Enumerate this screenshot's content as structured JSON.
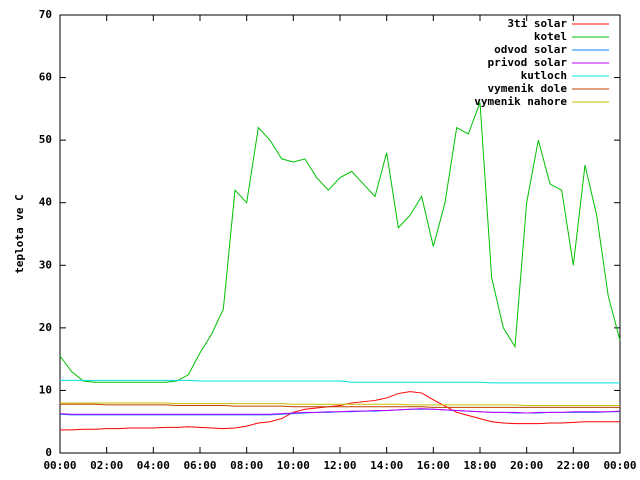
{
  "chart_data": {
    "type": "line",
    "ylabel": "teplota ve C",
    "xlim": [
      0,
      24
    ],
    "ylim": [
      0,
      70
    ],
    "yticks": [
      0,
      10,
      20,
      30,
      40,
      50,
      60,
      70
    ],
    "xticks": [
      {
        "value": 0,
        "label": "00:00"
      },
      {
        "value": 2,
        "label": "02:00"
      },
      {
        "value": 4,
        "label": "04:00"
      },
      {
        "value": 6,
        "label": "06:00"
      },
      {
        "value": 8,
        "label": "08:00"
      },
      {
        "value": 10,
        "label": "10:00"
      },
      {
        "value": 12,
        "label": "12:00"
      },
      {
        "value": 14,
        "label": "14:00"
      },
      {
        "value": 16,
        "label": "16:00"
      },
      {
        "value": 18,
        "label": "18:00"
      },
      {
        "value": 20,
        "label": "20:00"
      },
      {
        "value": 22,
        "label": "22:00"
      },
      {
        "value": 24,
        "label": "00:00"
      }
    ],
    "legend": "top-right",
    "x": [
      0,
      0.5,
      1,
      1.5,
      2,
      2.5,
      3,
      3.5,
      4,
      4.5,
      5,
      5.5,
      6,
      6.5,
      7,
      7.5,
      8,
      8.5,
      9,
      9.5,
      10,
      10.5,
      11,
      11.5,
      12,
      12.5,
      13,
      13.5,
      14,
      14.5,
      15,
      15.5,
      16,
      16.5,
      17,
      17.5,
      18,
      18.5,
      19,
      19.5,
      20,
      20.5,
      21,
      21.5,
      22,
      22.5,
      23,
      23.5,
      24
    ],
    "series": [
      {
        "name": "3ti solar",
        "color": "#ff0000",
        "values": [
          3.7,
          3.7,
          3.8,
          3.8,
          3.9,
          3.9,
          4.0,
          4.0,
          4.0,
          4.1,
          4.1,
          4.2,
          4.1,
          4.0,
          3.9,
          4.0,
          4.3,
          4.8,
          5.0,
          5.5,
          6.5,
          7.0,
          7.2,
          7.4,
          7.6,
          8.0,
          8.2,
          8.4,
          8.8,
          9.5,
          9.8,
          9.6,
          8.5,
          7.5,
          6.5,
          6.0,
          5.5,
          5.0,
          4.8,
          4.7,
          4.7,
          4.7,
          4.8,
          4.8,
          4.9,
          5.0,
          5.0,
          5.0,
          5.0
        ]
      },
      {
        "name": "kotel",
        "color": "#00c000",
        "values": [
          15.5,
          13,
          11.5,
          11.3,
          11.3,
          11.3,
          11.3,
          11.3,
          11.3,
          11.3,
          11.5,
          12.5,
          16,
          19,
          23,
          42,
          40,
          52,
          50,
          47,
          46.5,
          47,
          44,
          42,
          44,
          45,
          43,
          41,
          48,
          36,
          38,
          41,
          33,
          40,
          52,
          51,
          56,
          28,
          20,
          17,
          40,
          50,
          43,
          42,
          30,
          46,
          38,
          25,
          18
        ]
      },
      {
        "name": "odvod solar",
        "color": "#0080ff",
        "values": [
          6.2,
          6.1,
          6.1,
          6.1,
          6.1,
          6.1,
          6.1,
          6.1,
          6.1,
          6.1,
          6.1,
          6.1,
          6.1,
          6.1,
          6.1,
          6.1,
          6.1,
          6.1,
          6.1,
          6.2,
          6.3,
          6.4,
          6.5,
          6.5,
          6.6,
          6.6,
          6.7,
          6.7,
          6.8,
          6.9,
          7.0,
          7.0,
          7.0,
          6.9,
          6.8,
          6.7,
          6.6,
          6.5,
          6.5,
          6.4,
          6.4,
          6.4,
          6.5,
          6.5,
          6.5,
          6.5,
          6.5,
          6.6,
          6.6
        ]
      },
      {
        "name": "privod solar",
        "color": "#c000ff",
        "values": [
          6.3,
          6.2,
          6.2,
          6.2,
          6.2,
          6.2,
          6.2,
          6.2,
          6.2,
          6.2,
          6.2,
          6.2,
          6.2,
          6.2,
          6.2,
          6.2,
          6.2,
          6.2,
          6.2,
          6.3,
          6.4,
          6.5,
          6.5,
          6.6,
          6.6,
          6.7,
          6.7,
          6.8,
          6.8,
          6.9,
          7.0,
          7.1,
          7.0,
          6.9,
          6.8,
          6.7,
          6.6,
          6.5,
          6.5,
          6.5,
          6.4,
          6.5,
          6.5,
          6.5,
          6.6,
          6.6,
          6.6,
          6.6,
          6.7
        ]
      },
      {
        "name": "kutloch",
        "color": "#00e0e0",
        "values": [
          11.6,
          11.6,
          11.6,
          11.6,
          11.6,
          11.6,
          11.6,
          11.6,
          11.6,
          11.6,
          11.6,
          11.6,
          11.5,
          11.5,
          11.5,
          11.5,
          11.5,
          11.5,
          11.5,
          11.5,
          11.5,
          11.5,
          11.5,
          11.5,
          11.5,
          11.3,
          11.3,
          11.3,
          11.3,
          11.3,
          11.3,
          11.3,
          11.3,
          11.3,
          11.3,
          11.3,
          11.3,
          11.2,
          11.2,
          11.2,
          11.2,
          11.2,
          11.2,
          11.2,
          11.2,
          11.2,
          11.2,
          11.2,
          11.2
        ]
      },
      {
        "name": "vymenik dole",
        "color": "#c04000",
        "values": [
          7.8,
          7.8,
          7.8,
          7.8,
          7.7,
          7.7,
          7.7,
          7.7,
          7.7,
          7.7,
          7.6,
          7.6,
          7.6,
          7.6,
          7.6,
          7.5,
          7.5,
          7.5,
          7.5,
          7.5,
          7.4,
          7.4,
          7.4,
          7.4,
          7.4,
          7.4,
          7.4,
          7.4,
          7.4,
          7.4,
          7.4,
          7.4,
          7.3,
          7.3,
          7.3,
          7.3,
          7.3,
          7.3,
          7.3,
          7.3,
          7.3,
          7.3,
          7.3,
          7.3,
          7.3,
          7.3,
          7.3,
          7.3,
          7.3
        ]
      },
      {
        "name": "vymenik nahore",
        "color": "#c8c000",
        "values": [
          8.0,
          8.0,
          8.0,
          8.0,
          8.0,
          8.0,
          8.0,
          8.0,
          8.0,
          8.0,
          7.9,
          7.9,
          7.9,
          7.9,
          7.9,
          7.9,
          7.9,
          7.9,
          7.9,
          7.9,
          7.8,
          7.8,
          7.8,
          7.8,
          7.8,
          7.8,
          7.8,
          7.8,
          7.8,
          7.8,
          7.7,
          7.7,
          7.7,
          7.7,
          7.7,
          7.7,
          7.7,
          7.7,
          7.7,
          7.7,
          7.6,
          7.6,
          7.6,
          7.6,
          7.6,
          7.6,
          7.6,
          7.6,
          7.6
        ]
      }
    ]
  }
}
